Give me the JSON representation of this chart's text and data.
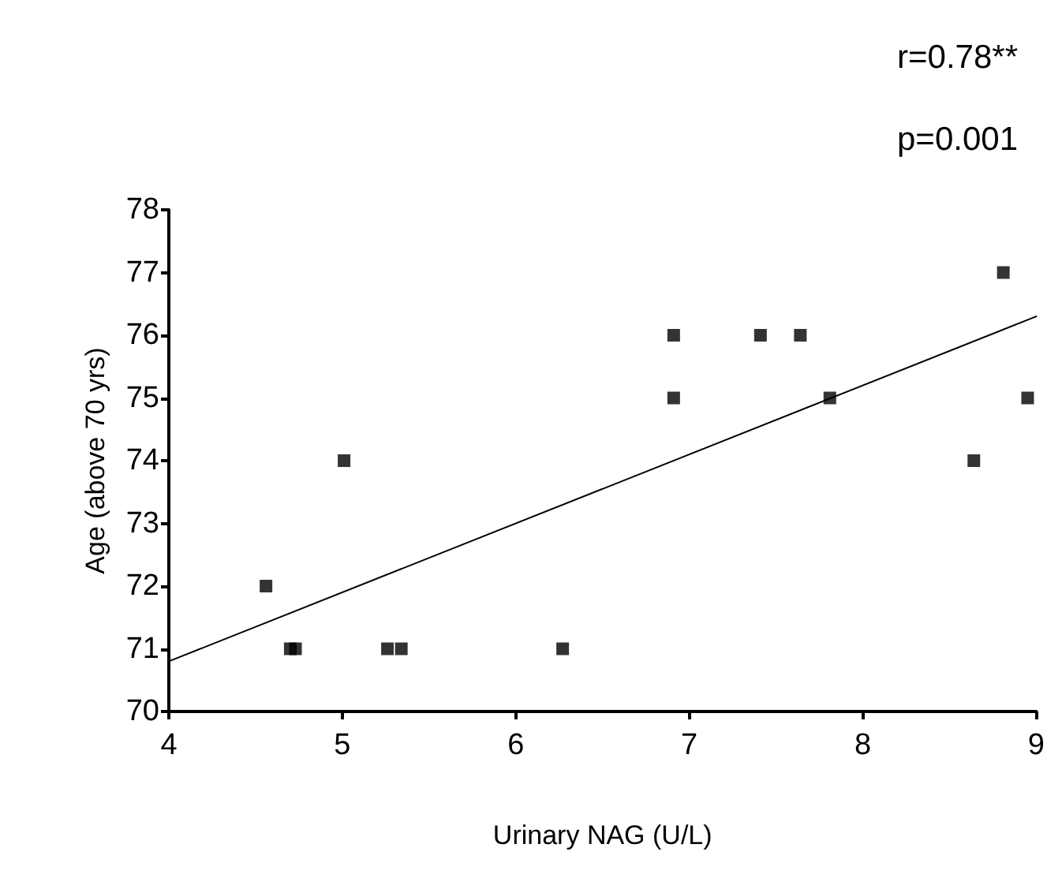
{
  "chart_data": {
    "type": "scatter",
    "xlabel": "Urinary NAG (U/L)",
    "ylabel": "Age (above 70 yrs)",
    "annotations": [
      "r=0.78**",
      "p=0.001"
    ],
    "xlim": [
      4,
      9
    ],
    "xticks": [
      4,
      5,
      6,
      7,
      8,
      9
    ],
    "ylim": [
      70,
      78
    ],
    "yticks": [
      70,
      71,
      72,
      73,
      74,
      75,
      76,
      77,
      78
    ],
    "grid": false,
    "marker": "square",
    "series": [
      {
        "color": "#000000",
        "x": [
          4.56,
          4.7,
          4.73,
          5.01,
          5.26,
          5.34,
          6.27,
          6.91,
          6.91,
          7.41,
          7.64,
          7.81,
          8.64,
          8.81,
          8.95
        ],
        "values": [
          72,
          71,
          71,
          74,
          71,
          71,
          71,
          76,
          75,
          76,
          76,
          75,
          74,
          77,
          75
        ]
      },
      {
        "type": "line",
        "color": "#000000",
        "x": [
          4,
          9
        ],
        "values": [
          70.8,
          76.3
        ],
        "marker": "none",
        "line_style": "solid"
      }
    ]
  }
}
